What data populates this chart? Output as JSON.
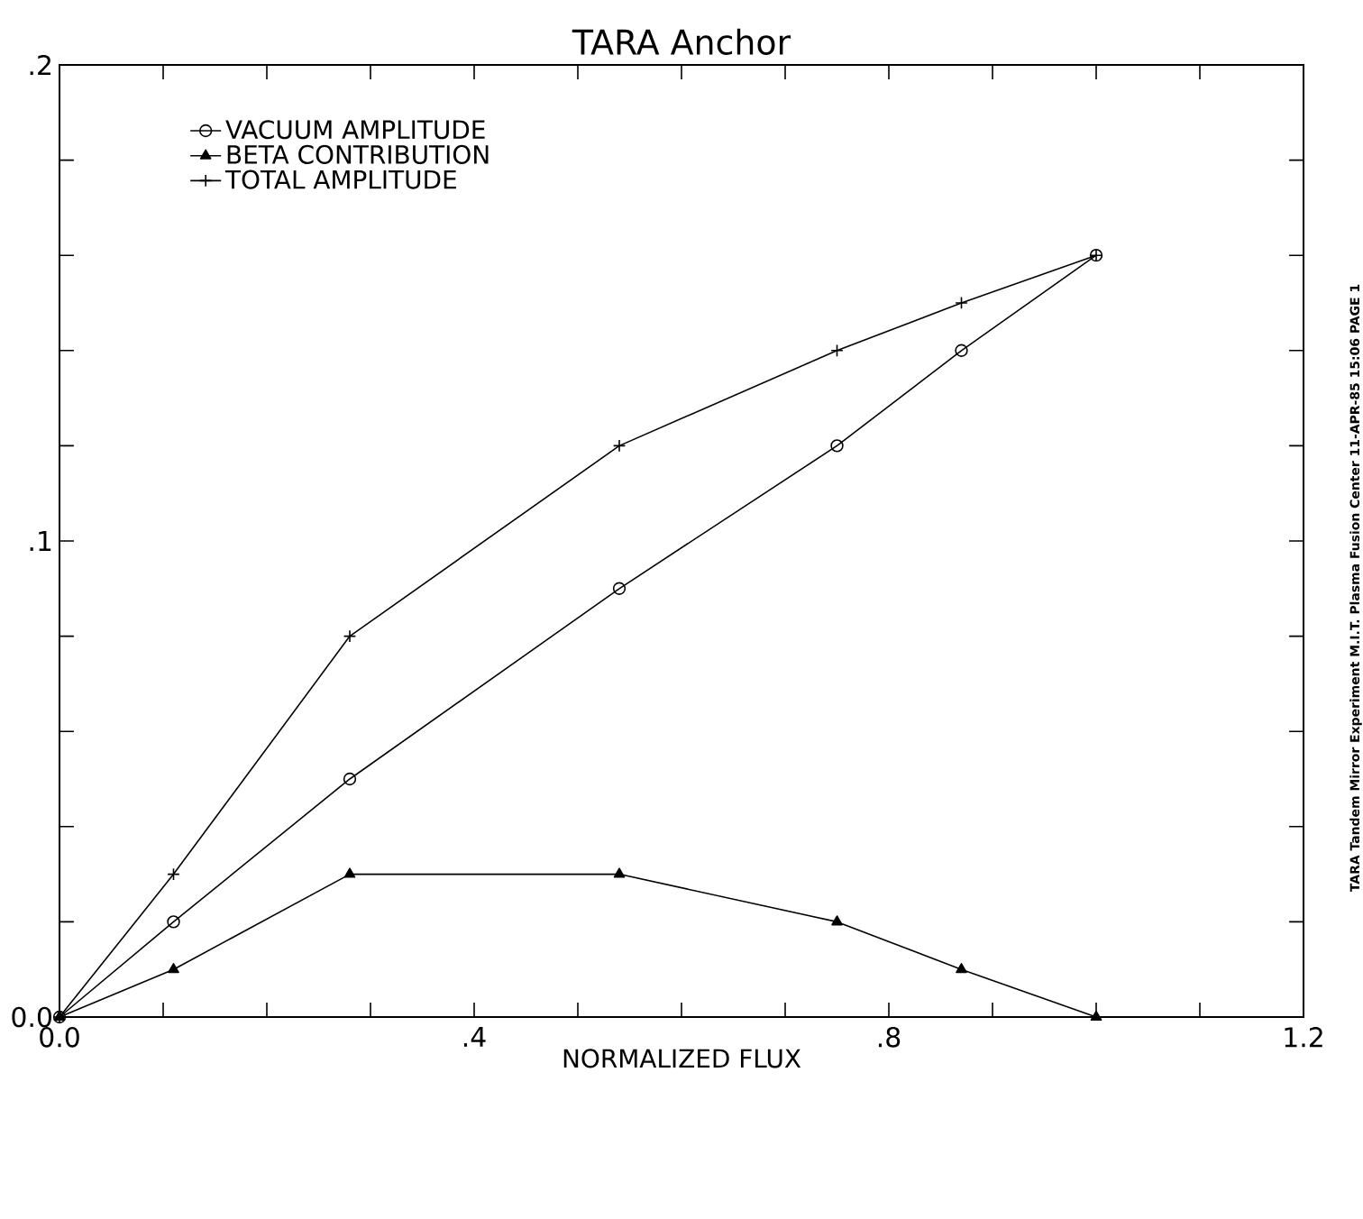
{
  "chart_data": {
    "type": "line",
    "title": "TARA Anchor",
    "xlabel": "NORMALIZED FLUX",
    "x": [
      0,
      0.11,
      0.28,
      0.54,
      0.75,
      0.87,
      1.0
    ],
    "series": [
      {
        "name": "VACUUM AMPLITUDE",
        "color": "#000000",
        "marker": "circle",
        "values": [
          0,
          0.02,
          0.05,
          0.09,
          0.12,
          0.14,
          0.16
        ]
      },
      {
        "name": "BETA CONTRIBUTION",
        "color": "#000000",
        "marker": "triangle",
        "values": [
          0,
          0.01,
          0.03,
          0.03,
          0.02,
          0.01,
          0
        ]
      },
      {
        "name": "TOTAL AMPLITUDE",
        "color": "#000000",
        "marker": "cross",
        "values": [
          0,
          0.03,
          0.08,
          0.12,
          0.14,
          0.15,
          0.16
        ]
      }
    ],
    "xlim": [
      0,
      1.2
    ],
    "ylim": [
      0,
      0.2
    ],
    "xticks": [
      {
        "value": 0,
        "label": "0.0"
      },
      {
        "value": 0.1,
        "label": null
      },
      {
        "value": 0.2,
        "label": null
      },
      {
        "value": 0.3,
        "label": null
      },
      {
        "value": 0.4,
        "label": ".4"
      },
      {
        "value": 0.5,
        "label": null
      },
      {
        "value": 0.6,
        "label": null
      },
      {
        "value": 0.7,
        "label": null
      },
      {
        "value": 0.8,
        "label": ".8"
      },
      {
        "value": 0.9,
        "label": null
      },
      {
        "value": 1.0,
        "label": null
      },
      {
        "value": 1.1,
        "label": null
      },
      {
        "value": 1.2,
        "label": "1.2"
      }
    ],
    "yticks": [
      {
        "value": 0,
        "label": "0.0"
      },
      {
        "value": 0.02,
        "label": null
      },
      {
        "value": 0.04,
        "label": null
      },
      {
        "value": 0.06,
        "label": null
      },
      {
        "value": 0.08,
        "label": null
      },
      {
        "value": 0.1,
        "label": ".1"
      },
      {
        "value": 0.12,
        "label": null
      },
      {
        "value": 0.14,
        "label": null
      },
      {
        "value": 0.16,
        "label": null
      },
      {
        "value": 0.18,
        "label": null
      },
      {
        "value": 0.2,
        "label": ".2"
      }
    ],
    "legend": "top left",
    "grid": false,
    "line_style": "solid",
    "annotations": [
      "TARA Tandem Mirror Experiment M.I.T. Plasma Fusion Center   11-APR-85 15:06   PAGE 1"
    ]
  }
}
